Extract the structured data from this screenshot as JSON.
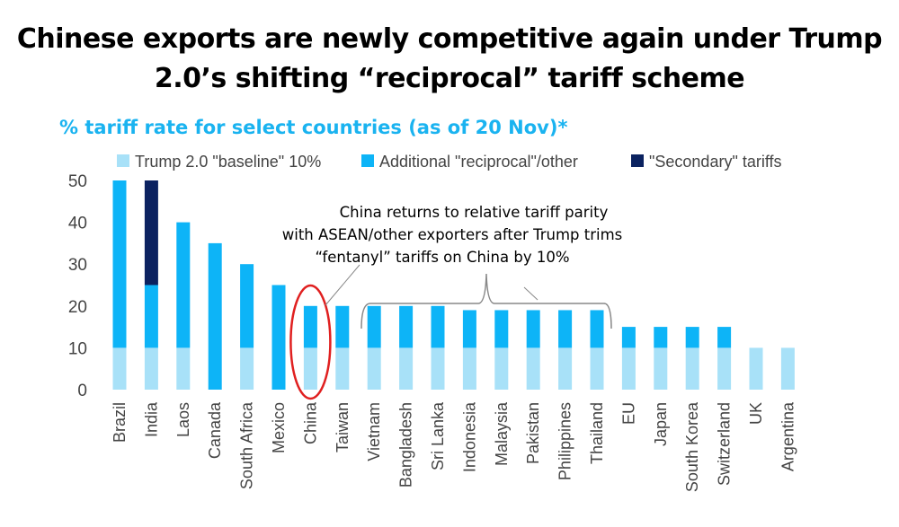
{
  "chart_data": {
    "type": "bar",
    "stacked": true,
    "title": "Chinese exports are newly competitive again under Trump 2.0’s shifting “reciprocal” tariff scheme",
    "subtitle": "% tariff rate for select countries (as of 20 Nov)*",
    "xlabel": "",
    "ylabel": "",
    "ylim": [
      0,
      50
    ],
    "yticks": [
      0,
      10,
      20,
      30,
      40,
      50
    ],
    "grid": false,
    "legend_position": "top",
    "categories": [
      "Brazil",
      "India",
      "Laos",
      "Canada",
      "South Africa",
      "Mexico",
      "China",
      "Taiwan",
      "Vietnam",
      "Bangladesh",
      "Sri Lanka",
      "Indonesia",
      "Malaysia",
      "Pakistan",
      "Philippines",
      "Thailand",
      "EU",
      "Japan",
      "South Korea",
      "Switzerland",
      "UK",
      "Argentina"
    ],
    "series": [
      {
        "name": "Trump 2.0 \"baseline\" 10%",
        "color": "#a8e1f8",
        "values": [
          10,
          10,
          10,
          0,
          10,
          0,
          10,
          10,
          10,
          10,
          10,
          10,
          10,
          10,
          10,
          10,
          10,
          10,
          10,
          10,
          10,
          10
        ]
      },
      {
        "name": "Additional \"reciprocal\"/other",
        "color": "#0db4f7",
        "values": [
          40,
          15,
          30,
          35,
          20,
          25,
          10,
          10,
          10,
          10,
          10,
          9,
          9,
          9,
          9,
          9,
          5,
          5,
          5,
          5,
          0,
          0
        ]
      },
      {
        "name": "\"Secondary\" tariffs",
        "color": "#0b2260",
        "values": [
          0,
          25,
          0,
          0,
          0,
          0,
          0,
          0,
          0,
          0,
          0,
          0,
          0,
          0,
          0,
          0,
          0,
          0,
          0,
          0,
          0,
          0
        ]
      }
    ],
    "annotation": {
      "lines": [
        "China returns to relative tariff parity",
        "with ASEAN/other exporters after Trump trims",
        "“fentanyl” tariffs on China by 10%"
      ],
      "highlight_color": "#e02020",
      "highlighted_category": "China"
    }
  }
}
